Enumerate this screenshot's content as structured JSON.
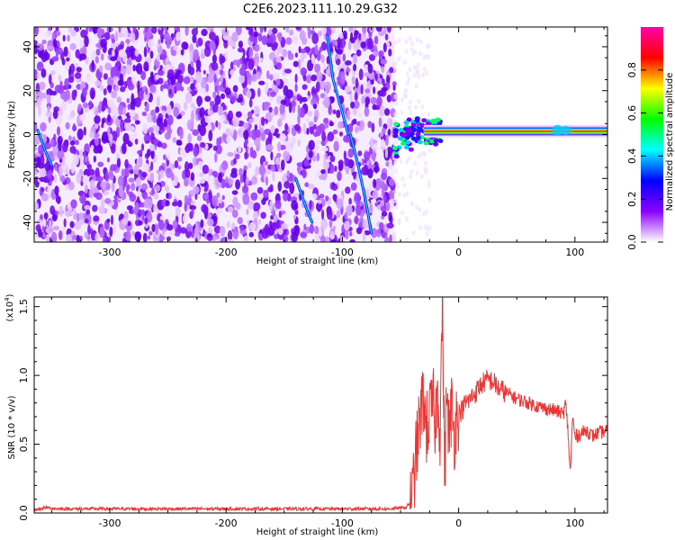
{
  "title": "C2E6.2023.111.10.29.G32",
  "chart_data": [
    {
      "type": "heatmap",
      "xlabel": "Height of straight line (km)",
      "ylabel": "Frequency (Hz)",
      "xlim": [
        -365,
        128
      ],
      "ylim": [
        -49,
        49
      ],
      "xticks": [
        -300,
        -200,
        -100,
        0,
        100
      ],
      "yticks": [
        -40,
        -20,
        0,
        20,
        40
      ],
      "noise_region_x": [
        -365,
        -55
      ],
      "signal_line_y": 1.5,
      "colorbar": {
        "label": "Normalized spectral amplitude",
        "range": [
          0,
          1
        ],
        "ticks": [
          "0.0",
          "0.2",
          "0.4",
          "0.6",
          "0.8"
        ],
        "colors": [
          "#ffffff",
          "#8b00ff",
          "#0000ff",
          "#00ffff",
          "#00ff00",
          "#ffff00",
          "#ff0000",
          "#ff00aa"
        ]
      }
    },
    {
      "type": "line",
      "xlabel": "Height of straight line (km)",
      "ylabel": "SNR (10 * v/v)",
      "y_scale_label": "(x10",
      "y_scale_exp": "4",
      "y_scale_close": ")",
      "xlim": [
        -365,
        128
      ],
      "ylim": [
        0,
        1.57
      ],
      "xticks": [
        -300,
        -200,
        -100,
        0,
        100
      ],
      "yticks": [
        "0.0",
        "0.5",
        "1.0",
        "1.5"
      ],
      "color": "#ee3333",
      "x": [
        -365,
        -355,
        -345,
        -300,
        -250,
        -200,
        -150,
        -100,
        -60,
        -45,
        -40,
        -38,
        -35,
        -32,
        -30,
        -28,
        -25,
        -22,
        -20,
        -18,
        -16,
        -14,
        -12,
        -10,
        -8,
        -6,
        -4,
        -2,
        0,
        3,
        6,
        9,
        12,
        15,
        18,
        22,
        26,
        30,
        35,
        40,
        50,
        60,
        70,
        80,
        88,
        90,
        92,
        94,
        96,
        98,
        100,
        105,
        110,
        115,
        120,
        128
      ],
      "y": [
        0.02,
        0.04,
        0.03,
        0.03,
        0.03,
        0.03,
        0.03,
        0.03,
        0.03,
        0.04,
        0.1,
        0.3,
        0.55,
        0.75,
        0.85,
        0.6,
        0.7,
        0.8,
        0.65,
        0.9,
        0.6,
        1.57,
        0.3,
        0.9,
        0.5,
        0.8,
        0.55,
        0.7,
        0.72,
        0.75,
        0.8,
        0.82,
        0.85,
        0.88,
        0.92,
        0.95,
        0.97,
        0.95,
        0.9,
        0.88,
        0.83,
        0.8,
        0.77,
        0.75,
        0.73,
        0.72,
        0.8,
        0.6,
        0.28,
        0.7,
        0.55,
        0.58,
        0.6,
        0.56,
        0.58,
        0.6
      ]
    }
  ]
}
